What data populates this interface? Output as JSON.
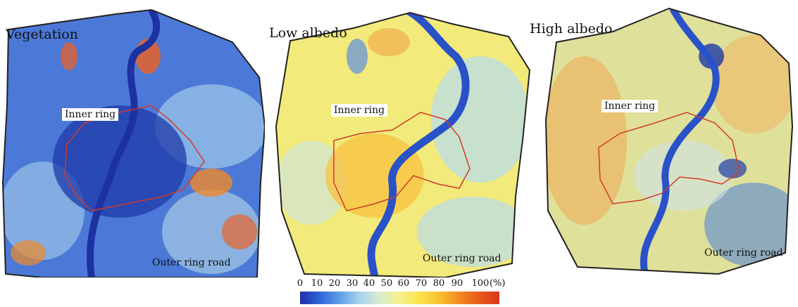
{
  "panels": [
    {
      "title": "Vegetation",
      "inner_ring": "Inner ring",
      "outer_ring": "Outer ring road",
      "dominant": "#2a4bc4"
    },
    {
      "title": "Low albedo",
      "inner_ring": "Inner ring",
      "outer_ring": "Outer ring road",
      "dominant": "#f4e86a"
    },
    {
      "title": "High albedo",
      "inner_ring": "Inner ring",
      "outer_ring": "Outer ring road",
      "dominant": "#e9e29a"
    }
  ],
  "colorbar": {
    "ticks": [
      "0",
      "10",
      "20",
      "30",
      "40",
      "50",
      "60",
      "70",
      "80",
      "90"
    ],
    "last_tick": "100",
    "unit": "(%)",
    "min": 0,
    "max": 100
  },
  "colors": {
    "river": "#2a52c8",
    "inner_ring_line": "#d23a2a",
    "boundary": "#222222"
  }
}
